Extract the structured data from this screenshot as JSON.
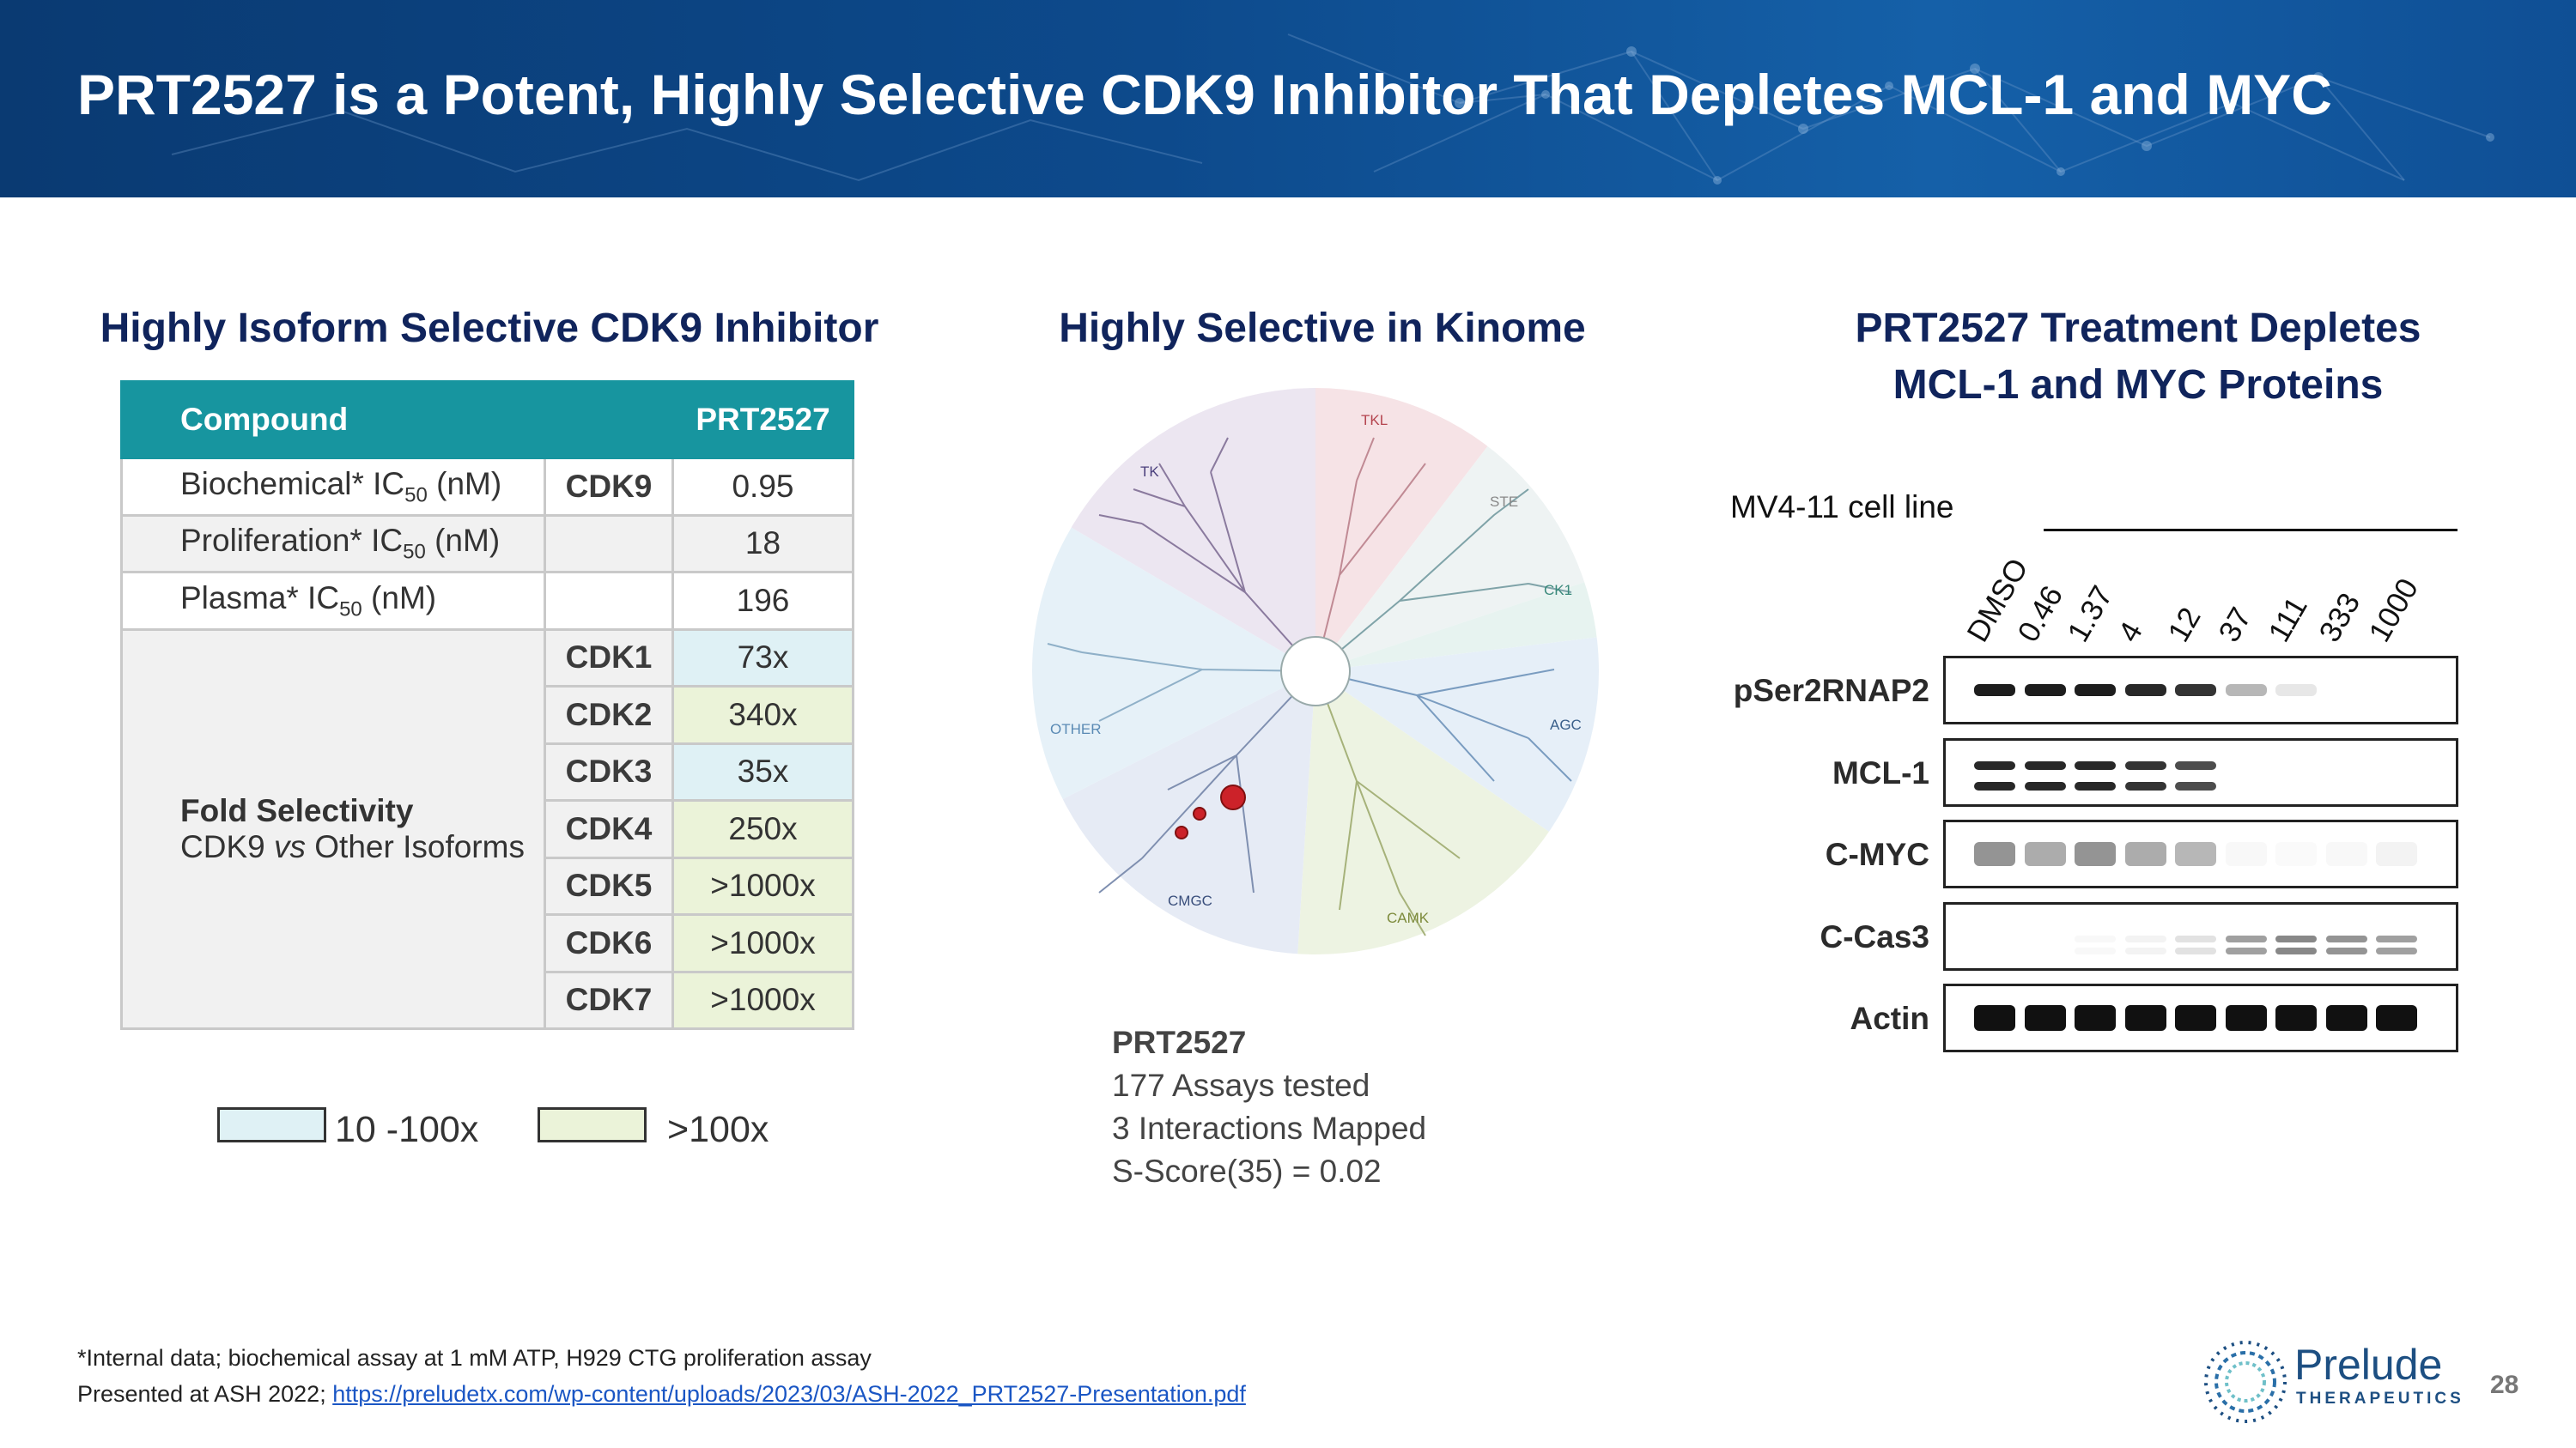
{
  "slide": {
    "title": "PRT2527 is a Potent, Highly Selective CDK9 Inhibitor That Depletes MCL-1 and MYC",
    "page_number": "28"
  },
  "left": {
    "heading": "Highly Isoform Selective CDK9 Inhibitor",
    "table": {
      "header": {
        "col1": "Compound",
        "col2": "",
        "col3": "PRT2527"
      },
      "rows": [
        {
          "label": "Biochemical* IC",
          "sub": "50",
          "unit": " (nM)",
          "target": "CDK9",
          "value": "0.95"
        },
        {
          "label": "Proliferation* IC",
          "sub": "50",
          "unit": " (nM)",
          "target": "",
          "value": "18"
        },
        {
          "label": "Plasma* IC",
          "sub": "50",
          "unit": " (nM)",
          "target": "",
          "value": "196"
        }
      ],
      "fold": {
        "title": "Fold Selectivity",
        "subtitle_pre": "CDK9 ",
        "subtitle_vs": "vs",
        "subtitle_post": " Other Isoforms",
        "rows": [
          {
            "target": "CDK1",
            "value": "73x",
            "category": "10-100x"
          },
          {
            "target": "CDK2",
            "value": "340x",
            "category": ">100x"
          },
          {
            "target": "CDK3",
            "value": "35x",
            "category": "10-100x"
          },
          {
            "target": "CDK4",
            "value": "250x",
            "category": ">100x"
          },
          {
            "target": "CDK5",
            "value": ">1000x",
            "category": ">100x"
          },
          {
            "target": "CDK6",
            "value": ">1000x",
            "category": ">100x"
          },
          {
            "target": "CDK7",
            "value": ">1000x",
            "category": ">100x"
          }
        ]
      }
    },
    "legend": [
      {
        "label": "10 -100x",
        "color": "#dff1f5"
      },
      {
        "label": ">100x",
        "color": "#ebf3d9"
      }
    ]
  },
  "middle": {
    "heading": "Highly Selective in Kinome",
    "groups": [
      "TKL",
      "STE",
      "CK1",
      "AGC",
      "CAMK",
      "CMGC",
      "OTHER",
      "TK"
    ],
    "compound": "PRT2527",
    "stats": [
      "177 Assays tested",
      "3 Interactions Mapped",
      "S-Score(35) = 0.02"
    ]
  },
  "right": {
    "heading_line1": "PRT2527 Treatment Depletes",
    "heading_line2": "MCL-1 and MYC Proteins",
    "cell_line": "MV4-11 cell line",
    "lanes": [
      "DMSO",
      "0.46",
      "1.37",
      "4",
      "12",
      "37",
      "111",
      "333",
      "1000"
    ],
    "blots": [
      {
        "name": "pSer2RNAP2",
        "intensity": [
          0.95,
          0.95,
          0.95,
          0.9,
          0.85,
          0.3,
          0.1,
          0,
          0
        ]
      },
      {
        "name": "MCL-1",
        "intensity": [
          0.9,
          0.9,
          0.9,
          0.85,
          0.75,
          0,
          0,
          0,
          0
        ]
      },
      {
        "name": "C-MYC",
        "intensity": [
          0.45,
          0.35,
          0.45,
          0.35,
          0.3,
          0.03,
          0.02,
          0.03,
          0.05
        ]
      },
      {
        "name": "C-Cas3",
        "intensity": [
          0,
          0,
          0.03,
          0.05,
          0.12,
          0.4,
          0.5,
          0.45,
          0.4
        ]
      },
      {
        "name": "Actin",
        "intensity": [
          1,
          1,
          1,
          1,
          1,
          1,
          1,
          1,
          1
        ]
      }
    ]
  },
  "footer": {
    "note": "*Internal data; biochemical assay at 1 mM ATP, H929 CTG proliferation assay",
    "source_prefix": "Presented at ASH 2022; ",
    "source_link": "https://preludetx.com/wp-content/uploads/2023/03/ASH-2022_PRT2527-Presentation.pdf",
    "logo_name": "Prelude",
    "logo_sub": "THERAPEUTICS"
  }
}
